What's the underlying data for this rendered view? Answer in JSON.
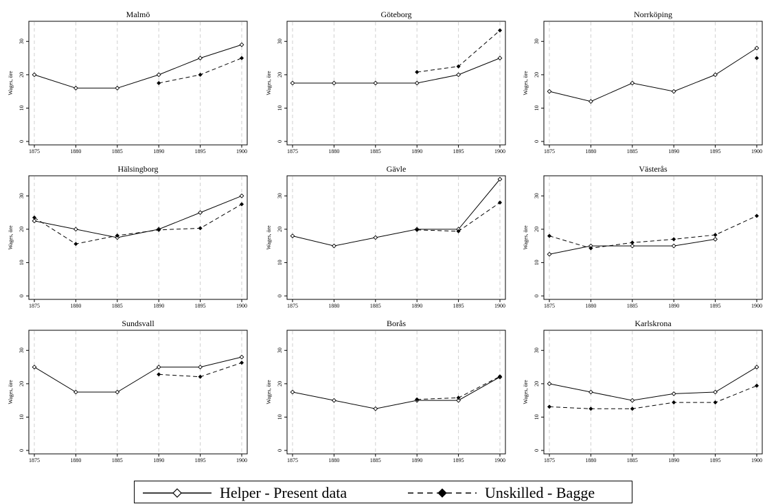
{
  "legend": {
    "helper_label": "Helper - Present data",
    "unskilled_label": "Unskilled - Bagge"
  },
  "chart_data": [
    {
      "type": "line",
      "title": "Malmö",
      "xlabel": "",
      "ylabel": "Wages, öre",
      "x": [
        1875,
        1880,
        1885,
        1890,
        1895,
        1900
      ],
      "ylim": [
        0,
        35
      ],
      "yticks": [
        0,
        10,
        20,
        30
      ],
      "series": [
        {
          "name": "Helper - Present data",
          "values": [
            20,
            16,
            16,
            20,
            25,
            29
          ]
        },
        {
          "name": "Unskilled - Bagge",
          "values": [
            null,
            null,
            null,
            17.5,
            20,
            25
          ]
        }
      ]
    },
    {
      "type": "line",
      "title": "Göteborg",
      "xlabel": "",
      "ylabel": "Wages, öre",
      "x": [
        1875,
        1880,
        1885,
        1890,
        1895,
        1900
      ],
      "ylim": [
        0,
        35
      ],
      "yticks": [
        0,
        10,
        20,
        30
      ],
      "series": [
        {
          "name": "Helper - Present data",
          "values": [
            17.5,
            17.5,
            17.5,
            17.5,
            20,
            25
          ]
        },
        {
          "name": "Unskilled - Bagge",
          "values": [
            null,
            null,
            null,
            20.8,
            22.5,
            33.3
          ]
        }
      ]
    },
    {
      "type": "line",
      "title": "Norrköping",
      "xlabel": "",
      "ylabel": "Wages, öre",
      "x": [
        1875,
        1880,
        1885,
        1890,
        1895,
        1900
      ],
      "ylim": [
        0,
        35
      ],
      "yticks": [
        0,
        10,
        20,
        30
      ],
      "series": [
        {
          "name": "Helper - Present data",
          "values": [
            15,
            12,
            17.5,
            15,
            20,
            28
          ]
        },
        {
          "name": "Unskilled - Bagge",
          "values": [
            null,
            null,
            null,
            null,
            null,
            25
          ]
        }
      ]
    },
    {
      "type": "line",
      "title": "Hälsingborg",
      "xlabel": "",
      "ylabel": "Wages, öre",
      "x": [
        1875,
        1880,
        1885,
        1890,
        1895,
        1900
      ],
      "ylim": [
        0,
        35
      ],
      "yticks": [
        0,
        10,
        20,
        30
      ],
      "series": [
        {
          "name": "Helper - Present data",
          "values": [
            22.5,
            20,
            17.5,
            20,
            25,
            30
          ]
        },
        {
          "name": "Unskilled - Bagge",
          "values": [
            23.5,
            15.6,
            18.1,
            19.8,
            20.3,
            27.5
          ]
        }
      ]
    },
    {
      "type": "line",
      "title": "Gävle",
      "xlabel": "",
      "ylabel": "Wages, öre",
      "x": [
        1875,
        1880,
        1885,
        1890,
        1895,
        1900
      ],
      "ylim": [
        0,
        35
      ],
      "yticks": [
        0,
        10,
        20,
        30
      ],
      "series": [
        {
          "name": "Helper - Present data",
          "values": [
            18,
            15,
            17.5,
            20,
            20,
            35
          ]
        },
        {
          "name": "Unskilled - Bagge",
          "values": [
            null,
            null,
            null,
            19.8,
            19.4,
            28
          ]
        }
      ]
    },
    {
      "type": "line",
      "title": "Västerås",
      "xlabel": "",
      "ylabel": "Wages, öre",
      "x": [
        1875,
        1880,
        1885,
        1890,
        1895,
        1900
      ],
      "ylim": [
        0,
        35
      ],
      "yticks": [
        0,
        10,
        20,
        30
      ],
      "series": [
        {
          "name": "Helper - Present data",
          "values": [
            12.5,
            15,
            15,
            15,
            17,
            null
          ]
        },
        {
          "name": "Unskilled - Bagge",
          "values": [
            18,
            14.3,
            16,
            17,
            18.3,
            24
          ]
        }
      ]
    },
    {
      "type": "line",
      "title": "Sundsvall",
      "xlabel": "",
      "ylabel": "Wages, öre",
      "x": [
        1875,
        1880,
        1885,
        1890,
        1895,
        1900
      ],
      "ylim": [
        0,
        35
      ],
      "yticks": [
        0,
        10,
        20,
        30
      ],
      "series": [
        {
          "name": "Helper - Present data",
          "values": [
            25,
            17.5,
            17.5,
            25,
            25,
            28
          ]
        },
        {
          "name": "Unskilled - Bagge",
          "values": [
            null,
            null,
            null,
            22.8,
            22.1,
            26.3
          ]
        }
      ]
    },
    {
      "type": "line",
      "title": "Borås",
      "xlabel": "",
      "ylabel": "Wages, öre",
      "x": [
        1875,
        1880,
        1885,
        1890,
        1895,
        1900
      ],
      "ylim": [
        0,
        35
      ],
      "yticks": [
        0,
        10,
        20,
        30
      ],
      "series": [
        {
          "name": "Helper - Present data",
          "values": [
            17.5,
            15,
            12.5,
            15,
            15,
            22
          ]
        },
        {
          "name": "Unskilled - Bagge",
          "values": [
            null,
            null,
            null,
            15.3,
            15.8,
            22.2
          ]
        }
      ]
    },
    {
      "type": "line",
      "title": "Karlskrona",
      "xlabel": "",
      "ylabel": "Wages, öre",
      "x": [
        1875,
        1880,
        1885,
        1890,
        1895,
        1900
      ],
      "ylim": [
        0,
        35
      ],
      "yticks": [
        0,
        10,
        20,
        30
      ],
      "series": [
        {
          "name": "Helper - Present data",
          "values": [
            20,
            17.5,
            15,
            17,
            17.5,
            25
          ]
        },
        {
          "name": "Unskilled - Bagge",
          "values": [
            13.1,
            12.5,
            12.5,
            14.4,
            14.4,
            19.4
          ]
        }
      ]
    }
  ]
}
